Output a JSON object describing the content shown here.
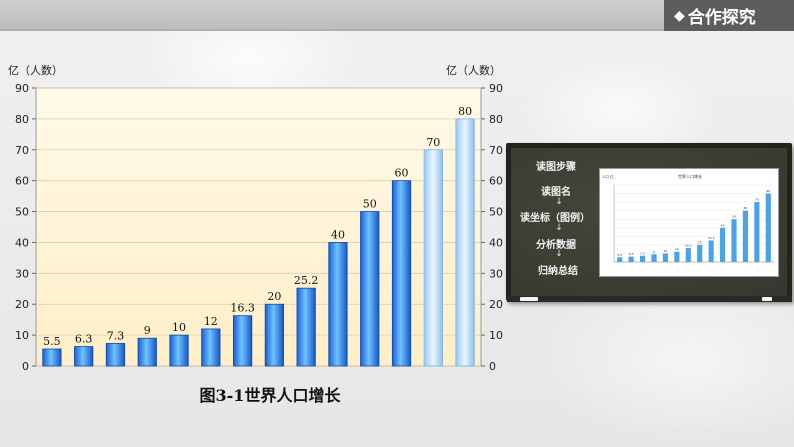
{
  "header": {
    "section_label": "合作探究",
    "diamond_glyph": "◆"
  },
  "figure_caption": "图3-1世界人口增长",
  "colors": {
    "bar_top": "#1a66e0",
    "bar_light": "#b8d9f5",
    "plot_bg": "#fff6dc",
    "board": "#3c3e33"
  },
  "chart_data": {
    "type": "bar",
    "title": "",
    "ylabel_left": "亿（人数）",
    "ylabel_right": "亿（人数）",
    "ylim": [
      0,
      90
    ],
    "yticks": [
      0,
      10,
      20,
      30,
      40,
      50,
      60,
      70,
      80,
      90
    ],
    "categories": [
      "",
      "",
      "",
      "",
      "",
      "",
      "",
      "",
      "",
      "",
      "",
      "",
      "",
      ""
    ],
    "values": [
      5.5,
      6.3,
      7.3,
      9,
      10,
      12,
      16.3,
      20,
      25.2,
      40,
      50,
      60,
      70,
      80
    ],
    "value_labels": [
      "5.5",
      "6.3",
      "7.3",
      "9",
      "10",
      "12",
      "16.3",
      "20",
      "25.2",
      "40",
      "50",
      "60",
      "70",
      "80"
    ],
    "projected_from_index": 12,
    "grid": true,
    "legend": "none"
  },
  "blackboard": {
    "steps": [
      "读图步骤",
      "读图名",
      "读坐标（图例）",
      "分析数据",
      "归纳总结"
    ],
    "arrow_glyph": "↓",
    "mini_chart": {
      "title": "世界人口增长",
      "ylabel": "人口 亿",
      "values": [
        5.5,
        6.3,
        7.3,
        9,
        10,
        12,
        16.3,
        20,
        25.2,
        40,
        50,
        60,
        70,
        80
      ]
    }
  }
}
